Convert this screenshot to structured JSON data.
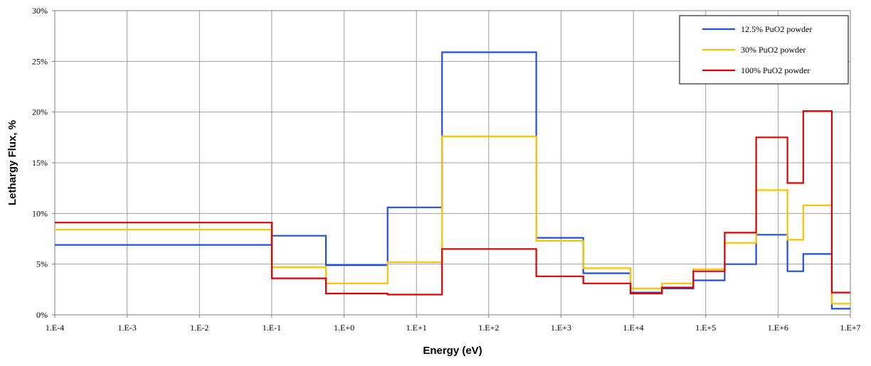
{
  "chart_data": {
    "type": "line",
    "step": true,
    "xlabel": "Energy (eV)",
    "ylabel": "Lethargy Flux, %",
    "xscale": "log",
    "xlim": [
      0.0001,
      10000000
    ],
    "ylim": [
      0,
      0.3
    ],
    "x_ticks": [
      "1.E-4",
      "1.E-3",
      "1.E-2",
      "1.E-1",
      "1.E+0",
      "1.E+1",
      "1.E+2",
      "1.E+3",
      "1.E+4",
      "1.E+5",
      "1.E+6",
      "1.E+7"
    ],
    "y_ticks": [
      "0%",
      "5%",
      "10%",
      "15%",
      "20%",
      "25%",
      "30%"
    ],
    "grid": true,
    "legend": "top-right",
    "bin_edges": [
      0.0001,
      0.1,
      0.56,
      4.0,
      22.6,
      454,
      2030,
      9120,
      24800,
      67400,
      183000,
      498000,
      1350000,
      2230000,
      5530000,
      10000000
    ],
    "series": [
      {
        "name": "12.5% PuO2 powder",
        "color": "#1f4fe0",
        "values": [
          0.069,
          0.078,
          0.049,
          0.106,
          0.259,
          0.076,
          0.041,
          0.022,
          0.026,
          0.034,
          0.05,
          0.079,
          0.043,
          0.06,
          0.006
        ]
      },
      {
        "name": "30% PuO2 powder",
        "color": "#ffc000",
        "values": [
          0.084,
          0.047,
          0.031,
          0.052,
          0.176,
          0.073,
          0.046,
          0.026,
          0.031,
          0.045,
          0.071,
          0.123,
          0.074,
          0.108,
          0.011
        ]
      },
      {
        "name": "100% PuO2 powder",
        "color": "#e00000",
        "values": [
          0.091,
          0.036,
          0.021,
          0.02,
          0.065,
          0.038,
          0.031,
          0.021,
          0.027,
          0.043,
          0.081,
          0.175,
          0.13,
          0.201,
          0.022
        ]
      }
    ]
  }
}
